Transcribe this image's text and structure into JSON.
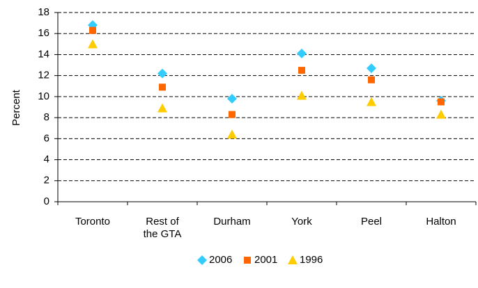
{
  "chart_data": {
    "type": "scatter",
    "y_label": "Percent",
    "categories": [
      "Toronto",
      "Rest of the GTA",
      "Durham",
      "York",
      "Peel",
      "Halton"
    ],
    "series": [
      {
        "name": "2006",
        "color": "#33ccff",
        "marker": "diamond",
        "values": [
          16.8,
          12.2,
          9.8,
          14.1,
          12.7,
          9.6
        ]
      },
      {
        "name": "2001",
        "color": "#ff6600",
        "marker": "square",
        "values": [
          16.3,
          10.9,
          8.3,
          12.5,
          11.6,
          9.5
        ]
      },
      {
        "name": "1996",
        "color": "#ffcc00",
        "marker": "triangle",
        "values": [
          15.0,
          8.9,
          6.4,
          10.1,
          9.5,
          8.3
        ]
      }
    ],
    "ylim": [
      0,
      18
    ],
    "yticks": [
      0,
      2,
      4,
      6,
      8,
      10,
      12,
      14,
      16,
      18
    ],
    "grid": true,
    "legend": "bottom"
  }
}
